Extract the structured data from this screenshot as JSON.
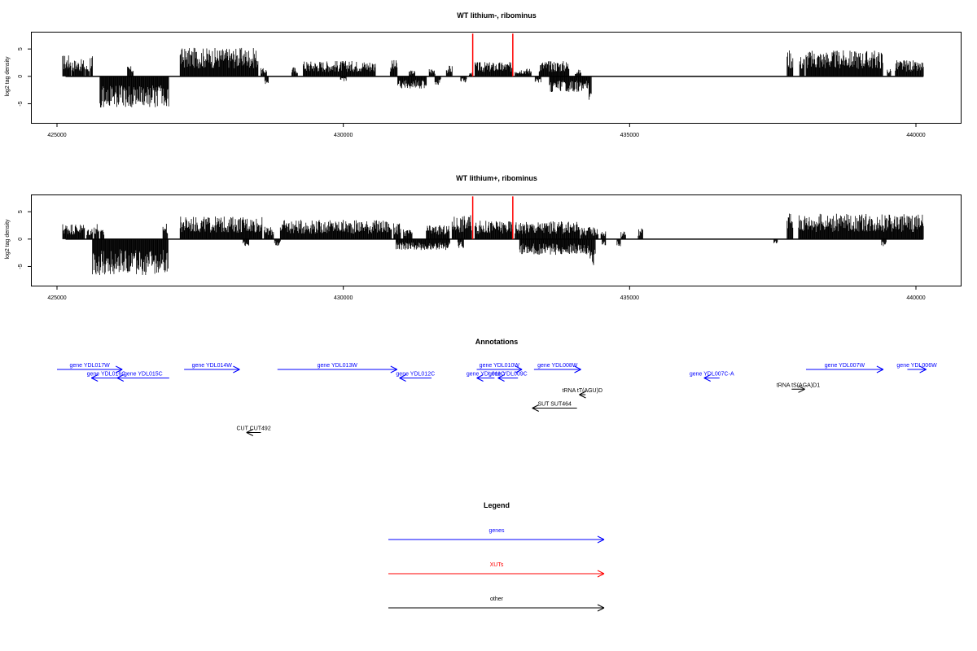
{
  "chart_data": [
    {
      "type": "bar",
      "title": "WT lithium-, ribominus",
      "ylabel": "log2 tag density",
      "xlim": [
        425000,
        440100
      ],
      "ylim": [
        -8.5,
        8
      ],
      "xticks": [
        "425000",
        "430000",
        "435000",
        "440000"
      ],
      "yticks": [
        "-5",
        "0",
        "5"
      ],
      "series": [
        {
          "strand": "plus",
          "color": "#000000",
          "bins": [
            [
              425100,
              425240,
              3.2
            ],
            [
              425260,
              425480,
              2.5
            ],
            [
              425500,
              425560,
              1.8
            ],
            [
              425580,
              425620,
              3.4
            ],
            [
              426230,
              426330,
              1.5
            ],
            [
              427150,
              428510,
              4.2
            ],
            [
              428560,
              428660,
              1.2
            ],
            [
              429100,
              429200,
              1.4
            ],
            [
              429300,
              430560,
              2.3
            ],
            [
              430820,
              430940,
              2.4
            ],
            [
              431150,
              431250,
              0.9
            ],
            [
              431500,
              431600,
              1.2
            ],
            [
              431800,
              431900,
              1.6
            ],
            [
              432200,
              432260,
              0.6
            ],
            [
              432300,
              432950,
              2.1
            ],
            [
              433000,
              433280,
              1.2
            ],
            [
              433420,
              433940,
              2.3
            ],
            [
              434050,
              434150,
              1.0
            ],
            [
              437750,
              437850,
              4.0
            ],
            [
              437970,
              438050,
              3.1
            ],
            [
              438080,
              439420,
              3.8
            ],
            [
              439500,
              439560,
              1.2
            ],
            [
              439640,
              439950,
              2.4
            ],
            [
              439960,
              440130,
              2.1
            ]
          ]
        },
        {
          "strand": "minus",
          "color": "#000000",
          "bins": [
            [
              425750,
              426950,
              -4.6
            ],
            [
              428630,
              428690,
              -1.2
            ],
            [
              429950,
              430050,
              -0.8
            ],
            [
              430950,
              431450,
              -1.8
            ],
            [
              431600,
              431700,
              -1.3
            ],
            [
              432050,
              432150,
              -0.9
            ],
            [
              433350,
              433450,
              -1.0
            ],
            [
              433600,
              434280,
              -2.3
            ],
            [
              434290,
              434330,
              -3.5
            ]
          ]
        },
        {
          "name": "XUTs",
          "color": "#ff0000",
          "positions": [
            432260,
            432960
          ],
          "value": 7.8
        }
      ]
    },
    {
      "type": "bar",
      "title": "WT lithium+, ribominus",
      "ylabel": "log2 tag density",
      "xlim": [
        425000,
        440100
      ],
      "ylim": [
        -8.5,
        8
      ],
      "xticks": [
        "425000",
        "430000",
        "435000",
        "440000"
      ],
      "yticks": [
        "-5",
        "0",
        "5"
      ],
      "series": [
        {
          "strand": "plus",
          "color": "#000000",
          "bins": [
            [
              425100,
              425480,
              2.3
            ],
            [
              425520,
              425620,
              1.7
            ],
            [
              425650,
              425730,
              2.4
            ],
            [
              425760,
              425820,
              1.4
            ],
            [
              426850,
              426930,
              2.4
            ],
            [
              427150,
              428580,
              3.3
            ],
            [
              428620,
              428780,
              1.8
            ],
            [
              428900,
              430840,
              2.8
            ],
            [
              430880,
              431000,
              2.3
            ],
            [
              431050,
              431200,
              1.4
            ],
            [
              431450,
              431850,
              2.0
            ],
            [
              431900,
              432240,
              3.5
            ],
            [
              432300,
              432950,
              2.7
            ],
            [
              433000,
              434130,
              2.6
            ],
            [
              434150,
              434450,
              1.8
            ],
            [
              434500,
              434580,
              1.2
            ],
            [
              434850,
              434930,
              1.2
            ],
            [
              435150,
              435230,
              1.6
            ],
            [
              437750,
              437850,
              4.2
            ],
            [
              437950,
              440130,
              3.7
            ]
          ]
        },
        {
          "strand": "minus",
          "color": "#000000",
          "bins": [
            [
              425620,
              426940,
              -5.3
            ],
            [
              428250,
              428350,
              -1.2
            ],
            [
              428800,
              428900,
              -1.0
            ],
            [
              430920,
              431860,
              -1.6
            ],
            [
              432000,
              432100,
              -1.3
            ],
            [
              433080,
              434280,
              -2.3
            ],
            [
              434290,
              434400,
              -4.5
            ],
            [
              434520,
              434580,
              -0.9
            ],
            [
              434780,
              434840,
              -1.1
            ],
            [
              437520,
              437580,
              -0.8
            ],
            [
              439400,
              439480,
              -1.2
            ]
          ]
        },
        {
          "name": "XUTs",
          "color": "#ff0000",
          "positions": [
            432260,
            432960
          ],
          "value": 7.8
        }
      ]
    }
  ],
  "annotations": {
    "title": "Annotations",
    "genes": [
      {
        "label": "gene YDL017W",
        "x1": 425000,
        "x2": 426140,
        "row": 0,
        "dir": 1
      },
      {
        "label": "gene YDL016C",
        "x1": 425600,
        "x2": 426120,
        "row": 1,
        "dir": -1
      },
      {
        "label": "gene YDL015C",
        "x1": 426050,
        "x2": 426960,
        "row": 1,
        "dir": -1
      },
      {
        "label": "gene YDL014W",
        "x1": 427220,
        "x2": 428190,
        "row": 0,
        "dir": 1
      },
      {
        "label": "gene YDL013W",
        "x1": 428850,
        "x2": 430940,
        "row": 0,
        "dir": 1
      },
      {
        "label": "gene YDL012C",
        "x1": 430980,
        "x2": 431540,
        "row": 1,
        "dir": -1
      },
      {
        "label": "gene YDL010W",
        "x1": 432330,
        "x2": 433120,
        "row": 0,
        "dir": 1
      },
      {
        "label": "gene YDL011C",
        "x1": 432330,
        "x2": 432640,
        "row": 1,
        "dir": -1
      },
      {
        "label": "gene YDL009C",
        "x1": 432700,
        "x2": 433050,
        "row": 1,
        "dir": -1
      },
      {
        "label": "gene YDL008W",
        "x1": 433330,
        "x2": 434150,
        "row": 0,
        "dir": 1
      },
      {
        "label": "gene YDL007C-A",
        "x1": 436300,
        "x2": 436570,
        "row": 1,
        "dir": -1
      },
      {
        "label": "gene YDL007W",
        "x1": 438080,
        "x2": 439430,
        "row": 0,
        "dir": 1
      },
      {
        "label": "gene YDL006W",
        "x1": 439850,
        "x2": 440180,
        "row": 0,
        "dir": 1
      }
    ],
    "other": [
      {
        "label": "tRNA tT(AGU)D",
        "x1": 434120,
        "x2": 434230,
        "row": 2,
        "dir": -1
      },
      {
        "label": "tRNA tS(AGA)D1",
        "x1": 437830,
        "x2": 438060,
        "row": 1.55,
        "dir": 1
      },
      {
        "label": "SUT SUT464",
        "x1": 433300,
        "x2": 434080,
        "row": 3,
        "dir": -1
      },
      {
        "label": "CUT CUT492",
        "x1": 428310,
        "x2": 428560,
        "row": 5,
        "dir": -1
      }
    ]
  },
  "legend": {
    "title": "Legend",
    "items": [
      {
        "label": "genes",
        "color": "#0000ff"
      },
      {
        "label": "XUTs",
        "color": "#ff0000"
      },
      {
        "label": "other",
        "color": "#000000"
      }
    ]
  }
}
